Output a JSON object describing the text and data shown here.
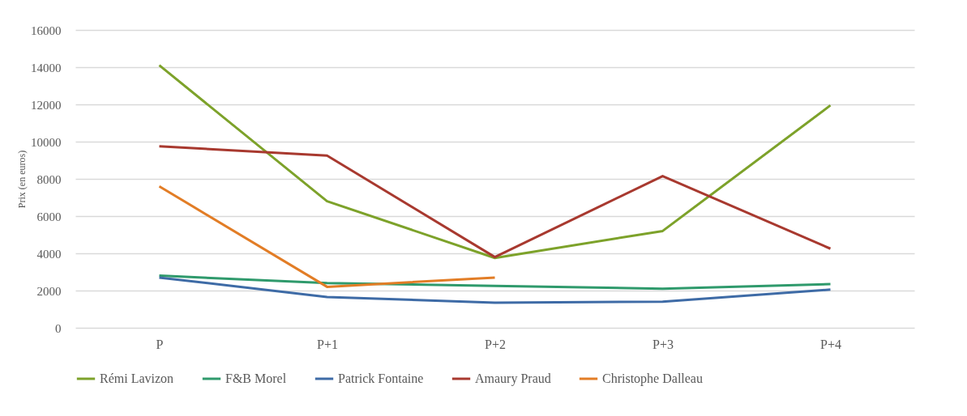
{
  "chart_data": {
    "type": "line",
    "ylabel": "Prix (en euros)",
    "categories": [
      "P",
      "P+1",
      "P+2",
      "P+3",
      "P+4"
    ],
    "series": [
      {
        "name": "Rémi Lavizon",
        "color": "#7da22a",
        "values": [
          14100,
          6800,
          3750,
          5200,
          11950
        ]
      },
      {
        "name": "F&B Morel",
        "color": "#2f9a6c",
        "values": [
          2800,
          2400,
          2250,
          2100,
          2350
        ]
      },
      {
        "name": "Patrick Fontaine",
        "color": "#3e6ba6",
        "values": [
          2700,
          1650,
          1350,
          1400,
          2050
        ]
      },
      {
        "name": "Amaury Praud",
        "color": "#a8392f",
        "values": [
          9750,
          9250,
          3800,
          8150,
          4250
        ]
      },
      {
        "name": "Christophe Dalleau",
        "color": "#e27d26",
        "values": [
          7600,
          2200,
          2700,
          null,
          null
        ]
      }
    ],
    "ylim": [
      0,
      16000
    ],
    "yticks": [
      0,
      2000,
      4000,
      6000,
      8000,
      10000,
      12000,
      14000,
      16000
    ],
    "grid": "y",
    "legend": "bottom",
    "line_style": "solid"
  }
}
